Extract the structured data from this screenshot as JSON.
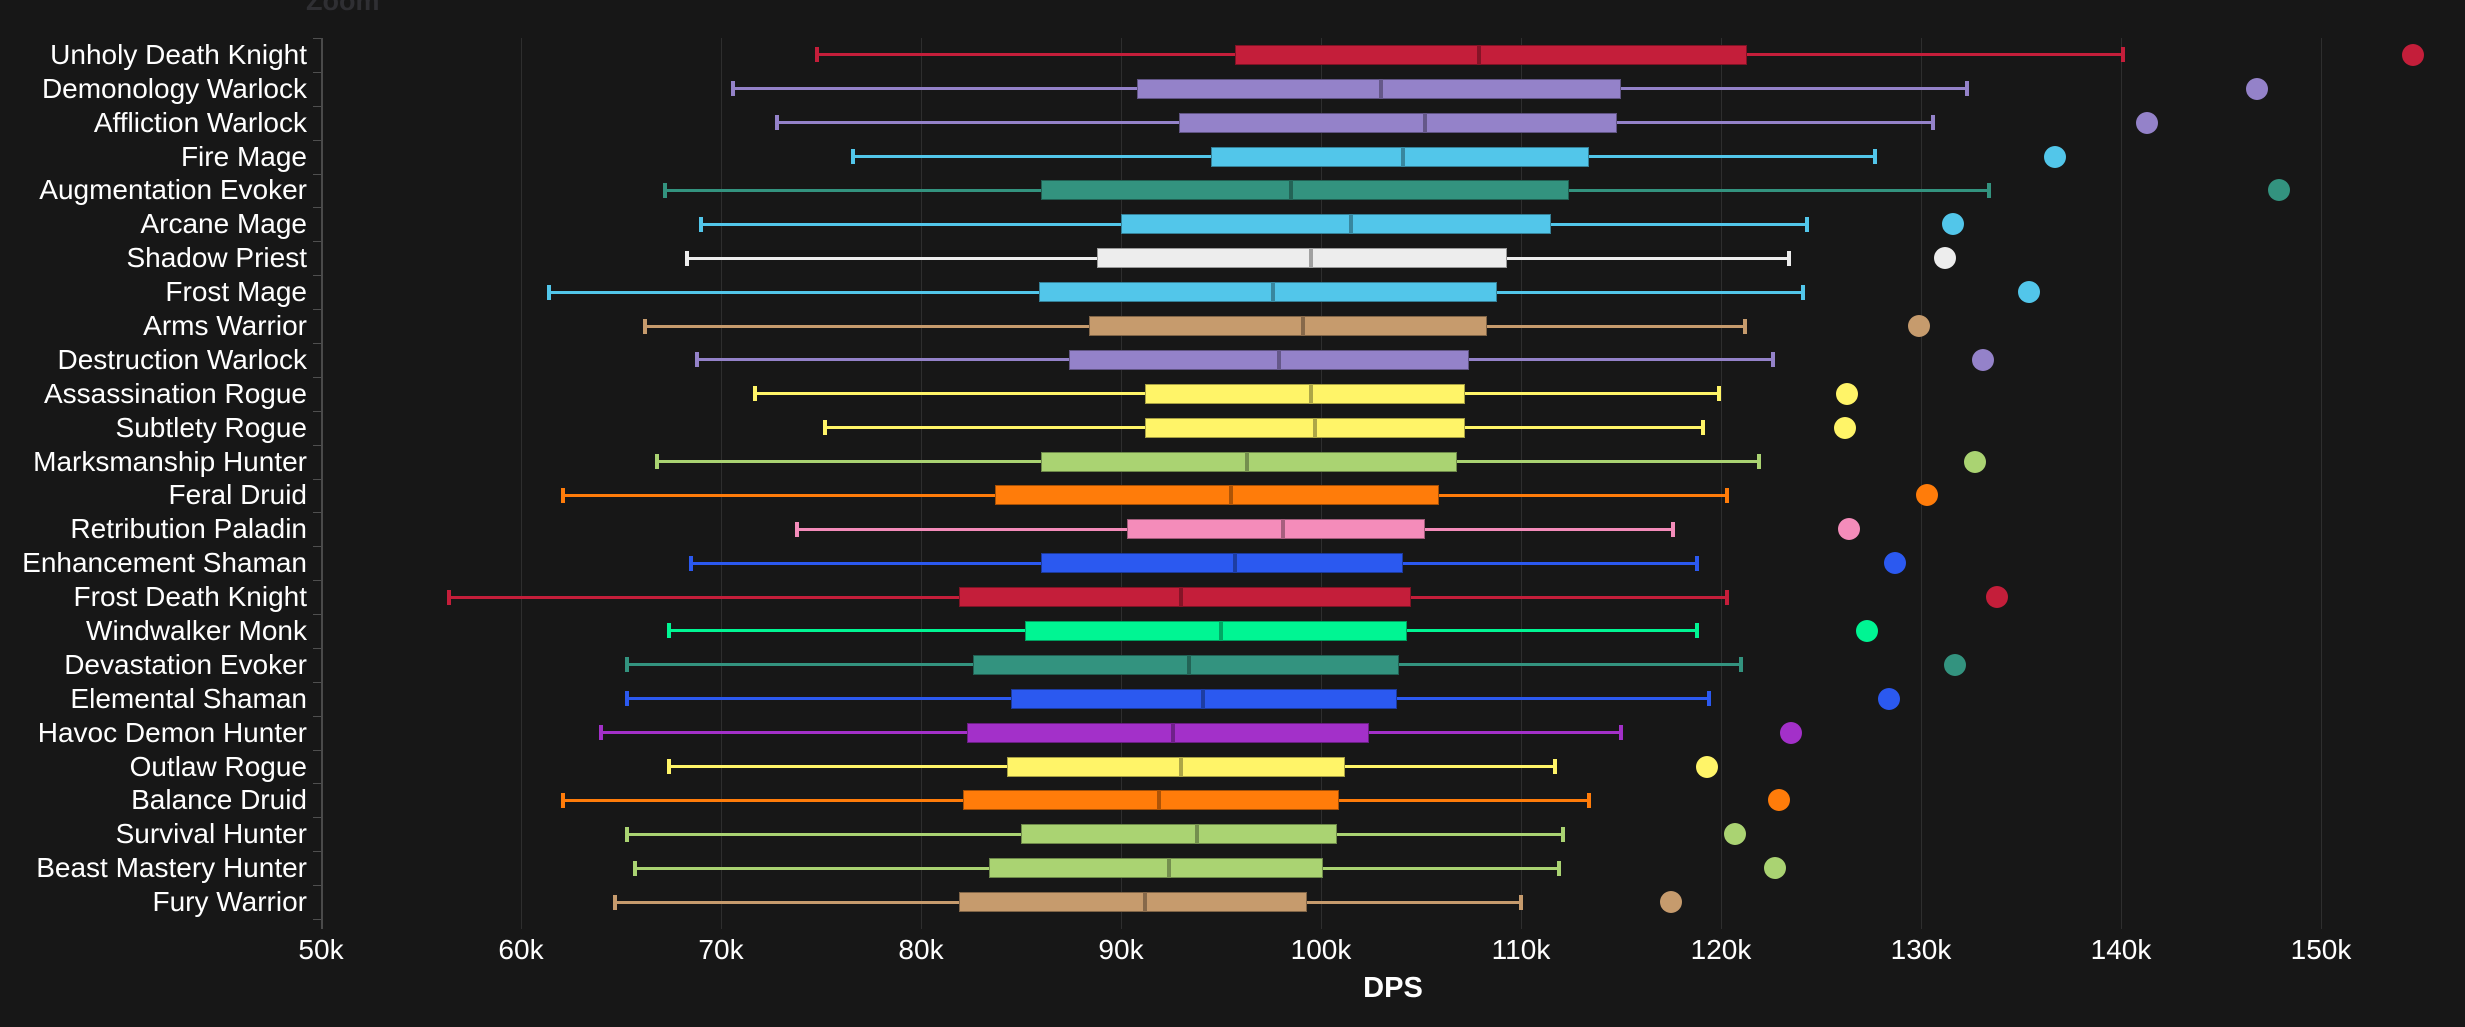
{
  "header": {
    "zoom_label": "Zoom"
  },
  "colors": {
    "background": "#171717",
    "grid": "#2e2e2e",
    "axis": "#4a4a4a",
    "text": "#ffffff",
    "zoom_text": "#2f2f33"
  },
  "chart_data": {
    "type": "boxplot",
    "orientation": "horizontal",
    "title": "Zoom",
    "xlabel": "DPS",
    "unit": "k DPS (thousands)",
    "xlim": [
      50,
      157.2
    ],
    "grid": true,
    "x_ticks": [
      {
        "value": 50,
        "label": "50k"
      },
      {
        "value": 60,
        "label": "60k"
      },
      {
        "value": 70,
        "label": "70k"
      },
      {
        "value": 80,
        "label": "80k"
      },
      {
        "value": 90,
        "label": "90k"
      },
      {
        "value": 100,
        "label": "100k"
      },
      {
        "value": 110,
        "label": "110k"
      },
      {
        "value": 120,
        "label": "120k"
      },
      {
        "value": 130,
        "label": "130k"
      },
      {
        "value": 140,
        "label": "140k"
      },
      {
        "value": 150,
        "label": "150k"
      }
    ],
    "series": [
      {
        "name": "Unholy Death Knight",
        "color": "#C41E3A",
        "low": 74.8,
        "q1": 95.7,
        "median": 107.9,
        "q3": 121.3,
        "high": 140.1,
        "outlier": 154.6
      },
      {
        "name": "Demonology Warlock",
        "color": "#9482C9",
        "low": 70.6,
        "q1": 90.8,
        "median": 103.0,
        "q3": 115.0,
        "high": 132.3,
        "outlier": 146.8
      },
      {
        "name": "Affliction Warlock",
        "color": "#9482C9",
        "low": 72.8,
        "q1": 92.9,
        "median": 105.2,
        "q3": 114.8,
        "high": 130.6,
        "outlier": 141.3
      },
      {
        "name": "Fire Mage",
        "color": "#52C6EA",
        "low": 76.6,
        "q1": 94.5,
        "median": 104.1,
        "q3": 113.4,
        "high": 127.7,
        "outlier": 136.7
      },
      {
        "name": "Augmentation Evoker",
        "color": "#33937F",
        "low": 67.2,
        "q1": 86.0,
        "median": 98.5,
        "q3": 112.4,
        "high": 133.4,
        "outlier": 147.9
      },
      {
        "name": "Arcane Mage",
        "color": "#52C6EA",
        "low": 69.0,
        "q1": 90.0,
        "median": 101.5,
        "q3": 111.5,
        "high": 124.3,
        "outlier": 131.6
      },
      {
        "name": "Shadow Priest",
        "color": "#EDEDED",
        "low": 68.3,
        "q1": 88.8,
        "median": 99.5,
        "q3": 109.3,
        "high": 123.4,
        "outlier": 131.2
      },
      {
        "name": "Frost Mage",
        "color": "#52C6EA",
        "low": 61.4,
        "q1": 85.9,
        "median": 97.6,
        "q3": 108.8,
        "high": 124.1,
        "outlier": 135.4
      },
      {
        "name": "Arms Warrior",
        "color": "#C69B6D",
        "low": 66.2,
        "q1": 88.4,
        "median": 99.1,
        "q3": 108.3,
        "high": 121.2,
        "outlier": 129.9
      },
      {
        "name": "Destruction Warlock",
        "color": "#9482C9",
        "low": 68.8,
        "q1": 87.4,
        "median": 97.9,
        "q3": 107.4,
        "high": 122.6,
        "outlier": 133.1
      },
      {
        "name": "Assassination Rogue",
        "color": "#FFF468",
        "low": 71.7,
        "q1": 91.2,
        "median": 99.5,
        "q3": 107.2,
        "high": 119.9,
        "outlier": 126.3
      },
      {
        "name": "Subtlety Rogue",
        "color": "#FFF468",
        "low": 75.2,
        "q1": 91.2,
        "median": 99.7,
        "q3": 107.2,
        "high": 119.1,
        "outlier": 126.2
      },
      {
        "name": "Marksmanship Hunter",
        "color": "#AAD372",
        "low": 66.8,
        "q1": 86.0,
        "median": 96.3,
        "q3": 106.8,
        "high": 121.9,
        "outlier": 132.7
      },
      {
        "name": "Feral Druid",
        "color": "#FF7C0A",
        "low": 62.1,
        "q1": 83.7,
        "median": 95.5,
        "q3": 105.9,
        "high": 120.3,
        "outlier": 130.3
      },
      {
        "name": "Retribution Paladin",
        "color": "#F48CBA",
        "low": 73.8,
        "q1": 90.3,
        "median": 98.1,
        "q3": 105.2,
        "high": 117.6,
        "outlier": 126.4
      },
      {
        "name": "Enhancement Shaman",
        "color": "#2B59F0",
        "low": 68.5,
        "q1": 86.0,
        "median": 95.7,
        "q3": 104.1,
        "high": 118.8,
        "outlier": 128.7
      },
      {
        "name": "Frost Death Knight",
        "color": "#C41E3A",
        "low": 56.4,
        "q1": 81.9,
        "median": 93.0,
        "q3": 104.5,
        "high": 120.3,
        "outlier": 133.8
      },
      {
        "name": "Windwalker Monk",
        "color": "#00F593",
        "low": 67.4,
        "q1": 85.2,
        "median": 95.0,
        "q3": 104.3,
        "high": 118.8,
        "outlier": 127.3
      },
      {
        "name": "Devastation Evoker",
        "color": "#33937F",
        "low": 65.3,
        "q1": 82.6,
        "median": 93.4,
        "q3": 103.9,
        "high": 121.0,
        "outlier": 131.7
      },
      {
        "name": "Elemental Shaman",
        "color": "#2B59F0",
        "low": 65.3,
        "q1": 84.5,
        "median": 94.1,
        "q3": 103.8,
        "high": 119.4,
        "outlier": 128.4
      },
      {
        "name": "Havoc Demon Hunter",
        "color": "#A330C9",
        "low": 64.0,
        "q1": 82.3,
        "median": 92.6,
        "q3": 102.4,
        "high": 115.0,
        "outlier": 123.5
      },
      {
        "name": "Outlaw Rogue",
        "color": "#FFF468",
        "low": 67.4,
        "q1": 84.3,
        "median": 93.0,
        "q3": 101.2,
        "high": 111.7,
        "outlier": 119.3
      },
      {
        "name": "Balance Druid",
        "color": "#FF7C0A",
        "low": 62.1,
        "q1": 82.1,
        "median": 91.9,
        "q3": 100.9,
        "high": 113.4,
        "outlier": 122.9
      },
      {
        "name": "Survival Hunter",
        "color": "#AAD372",
        "low": 65.3,
        "q1": 85.0,
        "median": 93.8,
        "q3": 100.8,
        "high": 112.1,
        "outlier": 120.7
      },
      {
        "name": "Beast Mastery Hunter",
        "color": "#AAD372",
        "low": 65.7,
        "q1": 83.4,
        "median": 92.4,
        "q3": 100.1,
        "high": 111.9,
        "outlier": 122.7
      },
      {
        "name": "Fury Warrior",
        "color": "#C69B6D",
        "low": 64.7,
        "q1": 81.9,
        "median": 91.2,
        "q3": 99.3,
        "high": 110.0,
        "outlier": 117.5
      }
    ]
  }
}
